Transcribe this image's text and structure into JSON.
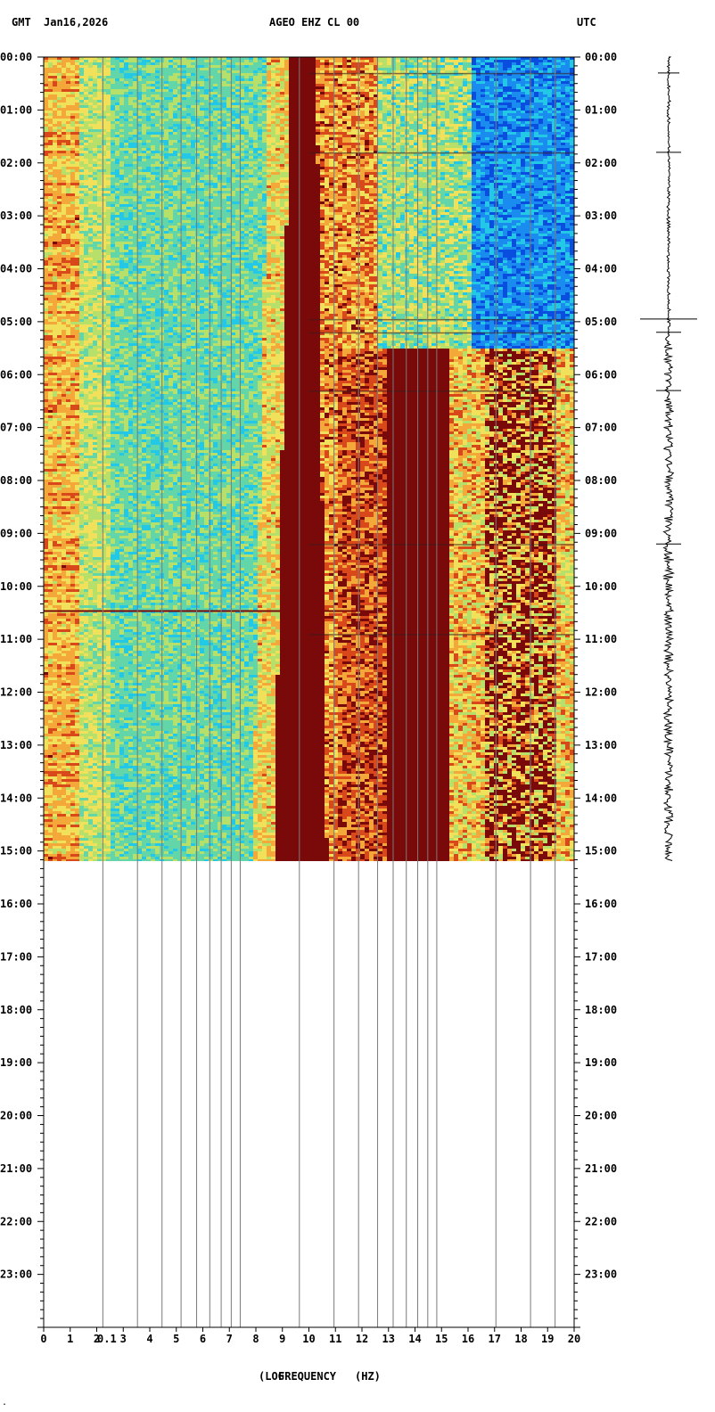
{
  "header": {
    "left_tz": "GMT",
    "date": "Jan16,2026",
    "station": "AGEO EHZ CL 00",
    "right_tz": "UTC"
  },
  "footer": {
    "xlabel_a": "(LOG",
    "xlabel_b": "FREQUENCY",
    "xlabel_c": "(HZ)",
    "overlay": "0.1",
    "corner": "."
  },
  "colors": {
    "background": "#ffffff",
    "axis": "#000000",
    "gridline": "#7a7a7a",
    "palette": [
      "#0a4ee0",
      "#1a8cf0",
      "#22c8e6",
      "#62d6a8",
      "#b6e06a",
      "#f0e05a",
      "#f5a83a",
      "#d8481a",
      "#7a0a0a"
    ]
  },
  "chart_data": {
    "type": "heatmap",
    "title": "AGEO EHZ CL 00",
    "xlabel": "(LOG FREQUENCY (HZ)",
    "ylabel": "",
    "x_ticks": [
      "0",
      "1",
      "2",
      "3",
      "4",
      "5",
      "6",
      "7",
      "8",
      "9",
      "10",
      "11",
      "12",
      "13",
      "14",
      "15",
      "16",
      "17",
      "18",
      "19",
      "20"
    ],
    "xlim": [
      0,
      20
    ],
    "y_ticks_left": [
      "00:00",
      "01:00",
      "02:00",
      "03:00",
      "04:00",
      "05:00",
      "06:00",
      "07:00",
      "08:00",
      "09:00",
      "10:00",
      "11:00",
      "12:00",
      "13:00",
      "14:00",
      "15:00",
      "16:00",
      "17:00",
      "18:00",
      "19:00",
      "20:00",
      "21:00",
      "22:00",
      "23:00"
    ],
    "y_ticks_right": [
      "00:00",
      "01:00",
      "02:00",
      "03:00",
      "04:00",
      "05:00",
      "06:00",
      "07:00",
      "08:00",
      "09:00",
      "10:00",
      "11:00",
      "12:00",
      "13:00",
      "14:00",
      "15:00",
      "16:00",
      "17:00",
      "18:00",
      "19:00",
      "20:00",
      "21:00",
      "22:00",
      "23:00"
    ],
    "ylim_hours": [
      0,
      24
    ],
    "data_end_hour": 15.2,
    "log_gridlines_hz": [
      0.1,
      0.2,
      0.3,
      0.4,
      0.5,
      0.6,
      0.7,
      0.8,
      0.9,
      1,
      2,
      3,
      4,
      5,
      6,
      7,
      8,
      9,
      10,
      20,
      30,
      40,
      50
    ],
    "bands": [
      {
        "label": "low-frequency background",
        "x_range": [
          0,
          1.3
        ],
        "level": "yellow-orange"
      },
      {
        "label": "mid background",
        "x_range": [
          1.3,
          8.5
        ],
        "level": "green-cyan"
      },
      {
        "label": "drifting strong band",
        "x_start": [
          9.2,
          10.2
        ],
        "x_end": [
          8.6,
          10.6
        ],
        "hours": [
          0,
          15.2
        ],
        "level": "dark red"
      },
      {
        "label": "strong band",
        "x_range": [
          12.8,
          15.2
        ],
        "hours": [
          5.5,
          15.2
        ],
        "level": "dark red"
      },
      {
        "label": "high-frequency quiet",
        "x_range": [
          16,
          20
        ],
        "hours": [
          0,
          5.5
        ],
        "level": "blue"
      }
    ],
    "events_hours": [
      0.3,
      1.8,
      4.95,
      5.2,
      6.3,
      9.2,
      10.45,
      10.9
    ]
  }
}
